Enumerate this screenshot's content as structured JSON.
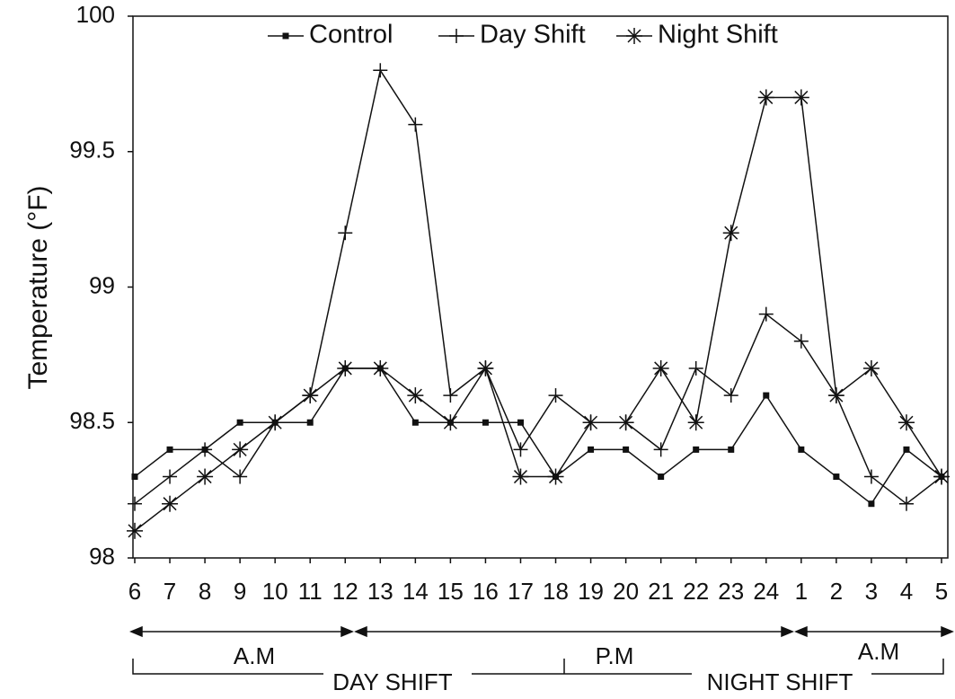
{
  "chart_data": {
    "type": "line",
    "y_label": "Temperature (°F)",
    "categories": [
      "6",
      "7",
      "8",
      "9",
      "10",
      "11",
      "12",
      "13",
      "14",
      "15",
      "16",
      "17",
      "18",
      "19",
      "20",
      "21",
      "22",
      "23",
      "24",
      "1",
      "2",
      "3",
      "4",
      "5"
    ],
    "series": [
      {
        "name": "Control",
        "color": "#111111",
        "marker": "square",
        "values": [
          98.3,
          98.4,
          98.4,
          98.5,
          98.5,
          98.5,
          98.7,
          98.7,
          98.5,
          98.5,
          98.5,
          98.5,
          98.3,
          98.4,
          98.4,
          98.3,
          98.4,
          98.4,
          98.6,
          98.4,
          98.3,
          98.2,
          98.4,
          98.3
        ]
      },
      {
        "name": "Day Shift",
        "color": "#111111",
        "marker": "plus",
        "values": [
          98.2,
          98.3,
          98.4,
          98.3,
          98.5,
          98.6,
          99.2,
          99.8,
          99.6,
          98.6,
          98.7,
          98.4,
          98.6,
          98.5,
          98.5,
          98.4,
          98.7,
          98.6,
          98.9,
          98.8,
          98.6,
          98.3,
          98.2,
          98.3
        ]
      },
      {
        "name": "Night Shift",
        "color": "#111111",
        "marker": "star",
        "values": [
          98.1,
          98.2,
          98.3,
          98.4,
          98.5,
          98.6,
          98.7,
          98.7,
          98.6,
          98.5,
          98.7,
          98.3,
          98.3,
          98.5,
          98.5,
          98.7,
          98.5,
          99.2,
          99.7,
          99.7,
          98.6,
          98.7,
          98.5,
          98.3
        ]
      }
    ],
    "ylim": [
      98,
      100
    ],
    "yticks": [
      98,
      98.5,
      99,
      99.5,
      100
    ],
    "grid": false,
    "legend": "top",
    "annotations": {
      "am_1": "A.M",
      "pm": "P.M",
      "am_2": "A.M",
      "day_shift": "DAY SHIFT",
      "night_shift": "NIGHT SHIFT"
    }
  }
}
